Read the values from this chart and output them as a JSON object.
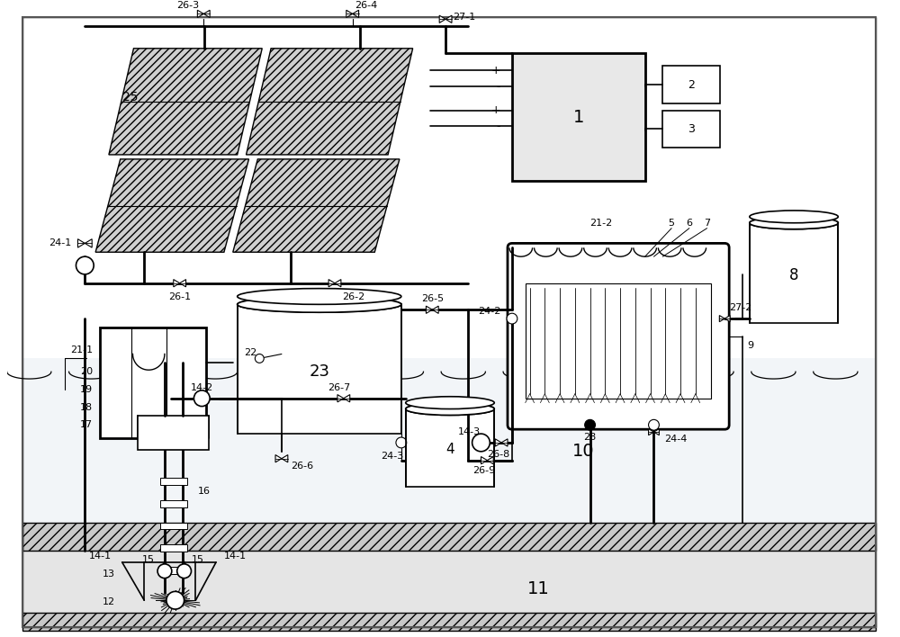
{
  "bg_color": "#ffffff",
  "lc": "#000000",
  "fig_width": 10.0,
  "fig_height": 7.08,
  "fill_panel": "#d4d4d4",
  "fill_box": "#e8e8e8",
  "fill_tank": "#f0f0f0",
  "fill_seabed": "#cccccc",
  "fill_sea": "#f5f8fb"
}
